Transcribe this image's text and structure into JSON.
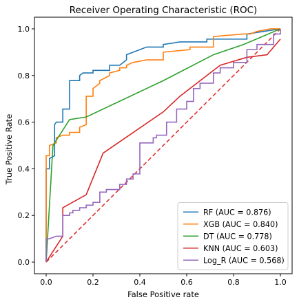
{
  "chart_data": {
    "type": "line",
    "title": "Receiver Operating Characteristic (ROC)",
    "xlabel": "False Positive rate",
    "ylabel": "True Positive Rate",
    "xlim": [
      -0.05,
      1.05
    ],
    "ylim": [
      -0.05,
      1.05
    ],
    "x_ticks": [
      "0.0",
      "0.2",
      "0.4",
      "0.6",
      "0.8",
      "1.0"
    ],
    "y_ticks": [
      "0.0",
      "0.2",
      "0.4",
      "0.6",
      "0.8",
      "1.0"
    ],
    "grid": false,
    "legend_position": "lower-right",
    "series": [
      {
        "name": "RF (AUC = 0.876)",
        "color": "#1f77b4",
        "x": [
          0,
          0,
          0.014,
          0.014,
          0.036,
          0.036,
          0.043,
          0.071,
          0.071,
          0.1,
          0.1,
          0.143,
          0.143,
          0.157,
          0.2,
          0.2,
          0.271,
          0.271,
          0.314,
          0.343,
          0.343,
          0.371,
          0.429,
          0.5,
          0.5,
          0.571,
          0.614,
          0.686,
          0.686,
          0.857,
          0.857,
          1.0
        ],
        "y": [
          0,
          0.4,
          0.4,
          0.444,
          0.456,
          0.589,
          0.6,
          0.6,
          0.656,
          0.656,
          0.778,
          0.778,
          0.8,
          0.811,
          0.811,
          0.822,
          0.822,
          0.844,
          0.844,
          0.867,
          0.889,
          0.9,
          0.922,
          0.922,
          0.933,
          0.944,
          0.944,
          0.944,
          0.956,
          0.956,
          0.978,
          1.0
        ]
      },
      {
        "name": "XGB (AUC = 0.840)",
        "color": "#ff7f0e",
        "x": [
          0,
          0,
          0.014,
          0.014,
          0.043,
          0.043,
          0.071,
          0.1,
          0.1,
          0.143,
          0.143,
          0.171,
          0.171,
          0.2,
          0.2,
          0.229,
          0.229,
          0.271,
          0.271,
          0.314,
          0.314,
          0.343,
          0.343,
          0.371,
          0.429,
          0.5,
          0.5,
          0.614,
          0.614,
          0.714,
          0.714,
          0.843,
          0.871,
          0.9,
          0.9,
          0.957,
          1.0
        ],
        "y": [
          0,
          0.456,
          0.456,
          0.5,
          0.511,
          0.533,
          0.544,
          0.544,
          0.556,
          0.556,
          0.578,
          0.589,
          0.711,
          0.711,
          0.744,
          0.767,
          0.778,
          0.8,
          0.811,
          0.822,
          0.833,
          0.833,
          0.844,
          0.856,
          0.867,
          0.867,
          0.9,
          0.911,
          0.922,
          0.922,
          0.967,
          0.978,
          0.978,
          0.989,
          0.989,
          1.0,
          1.0
        ]
      },
      {
        "name": "DT (AUC = 0.778)",
        "color": "#2ca02c",
        "x": [
          0,
          0.029,
          0.1,
          0.171,
          0.5,
          0.714,
          0.843,
          1.0
        ],
        "y": [
          0,
          0.5,
          0.611,
          0.622,
          0.778,
          0.889,
          0.933,
          1.0
        ]
      },
      {
        "name": "KNN (AUC = 0.603)",
        "color": "#d62728",
        "x": [
          0,
          0.071,
          0.071,
          0.171,
          0.243,
          0.5,
          0.571,
          0.743,
          0.857,
          0.943,
          1.0
        ],
        "y": [
          0,
          0.111,
          0.233,
          0.289,
          0.467,
          0.644,
          0.711,
          0.844,
          0.878,
          0.889,
          0.956
        ]
      },
      {
        "name": "Log_R (AUC = 0.568)",
        "color": "#9467bd",
        "x": [
          0,
          0,
          0.014,
          0.014,
          0.043,
          0.071,
          0.071,
          0.1,
          0.1,
          0.114,
          0.114,
          0.143,
          0.143,
          0.171,
          0.171,
          0.2,
          0.2,
          0.229,
          0.229,
          0.257,
          0.257,
          0.314,
          0.314,
          0.343,
          0.343,
          0.371,
          0.371,
          0.4,
          0.4,
          0.457,
          0.457,
          0.471,
          0.471,
          0.514,
          0.514,
          0.557,
          0.557,
          0.6,
          0.6,
          0.629,
          0.629,
          0.657,
          0.657,
          0.714,
          0.714,
          0.743,
          0.743,
          0.8,
          0.8,
          0.857,
          0.857,
          0.9,
          0.9,
          0.971,
          0.971,
          1.0,
          1.0
        ],
        "y": [
          0,
          0.1,
          0.1,
          0.1,
          0.111,
          0.111,
          0.2,
          0.2,
          0.211,
          0.211,
          0.222,
          0.222,
          0.233,
          0.233,
          0.244,
          0.244,
          0.256,
          0.256,
          0.3,
          0.3,
          0.311,
          0.311,
          0.333,
          0.333,
          0.356,
          0.356,
          0.378,
          0.378,
          0.511,
          0.511,
          0.533,
          0.533,
          0.544,
          0.544,
          0.6,
          0.6,
          0.656,
          0.656,
          0.689,
          0.689,
          0.744,
          0.744,
          0.767,
          0.767,
          0.811,
          0.811,
          0.833,
          0.833,
          0.856,
          0.856,
          0.911,
          0.911,
          0.933,
          0.933,
          0.978,
          0.978,
          1.0
        ]
      }
    ],
    "reference_line": {
      "color": "#e03030",
      "x": [
        0,
        1
      ],
      "y": [
        0,
        1
      ]
    }
  }
}
